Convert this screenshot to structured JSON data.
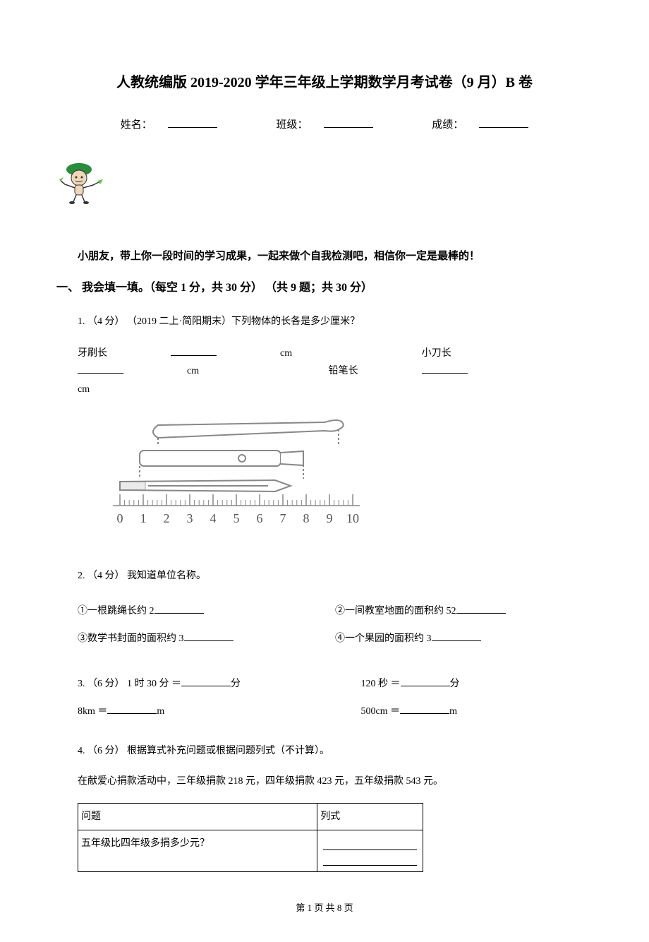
{
  "title": "人教统编版 2019-2020 学年三年级上学期数学月考试卷（9 月）B 卷",
  "info": {
    "name_label": "姓名：",
    "class_label": "班级：",
    "score_label": "成绩："
  },
  "intro": "小朋友，带上你一段时间的学习成果，一起来做个自我检测吧，相信你一定是最棒的！",
  "section1": {
    "header": "一、 我会填一填。（每空 1 分，共 30 分） （共 9 题；共 30 分）"
  },
  "q1": {
    "prefix": "1. （4 分） （2019 二上·简阳期末）下列物体的长各是多少厘米？",
    "blank1_label": "牙刷长",
    "blank2_label": "小刀长",
    "blank3_label": "铅笔长",
    "unit": "cm",
    "ruler": {
      "ticks": [
        "0",
        "1",
        "2",
        "3",
        "4",
        "5",
        "6",
        "7",
        "8",
        "9",
        "10"
      ],
      "tick_color": "#888888",
      "object_color": "#888888"
    }
  },
  "q2": {
    "prefix": "2. （4 分） 我知道单位名称。",
    "item1": "①一根跳绳长约 2",
    "item2": "②一间教室地面的面积约 52",
    "item3": "③数学书封面的面积约 3",
    "item4": "④一个果园的面积约 3"
  },
  "q3": {
    "prefix": "3. （6 分） 1 时 30 分 ＝",
    "unit1": "分",
    "item2_left": "120 秒 ＝",
    "unit2": "分",
    "item3_left": "8km ＝",
    "unit3": "m",
    "item4_left": "500cm ＝",
    "unit4": "m"
  },
  "q4": {
    "prefix": "4. （6 分） 根据算式补充问题或根据问题列式（不计算）。",
    "context": "在献爱心捐款活动中，三年级捐款 218 元，四年级捐款 423 元，五年级捐款 543 元。",
    "table": {
      "header_col1": "问题",
      "header_col2": "列式",
      "row1_col1": "五年级比四年级多捐多少元？"
    }
  },
  "cartoon": {
    "hat_color": "#2a8c3c",
    "skin_color": "#f0d6b8",
    "outline_color": "#333333",
    "accent_color": "#6bbf4f"
  },
  "footer": "第 1 页 共 8 页"
}
